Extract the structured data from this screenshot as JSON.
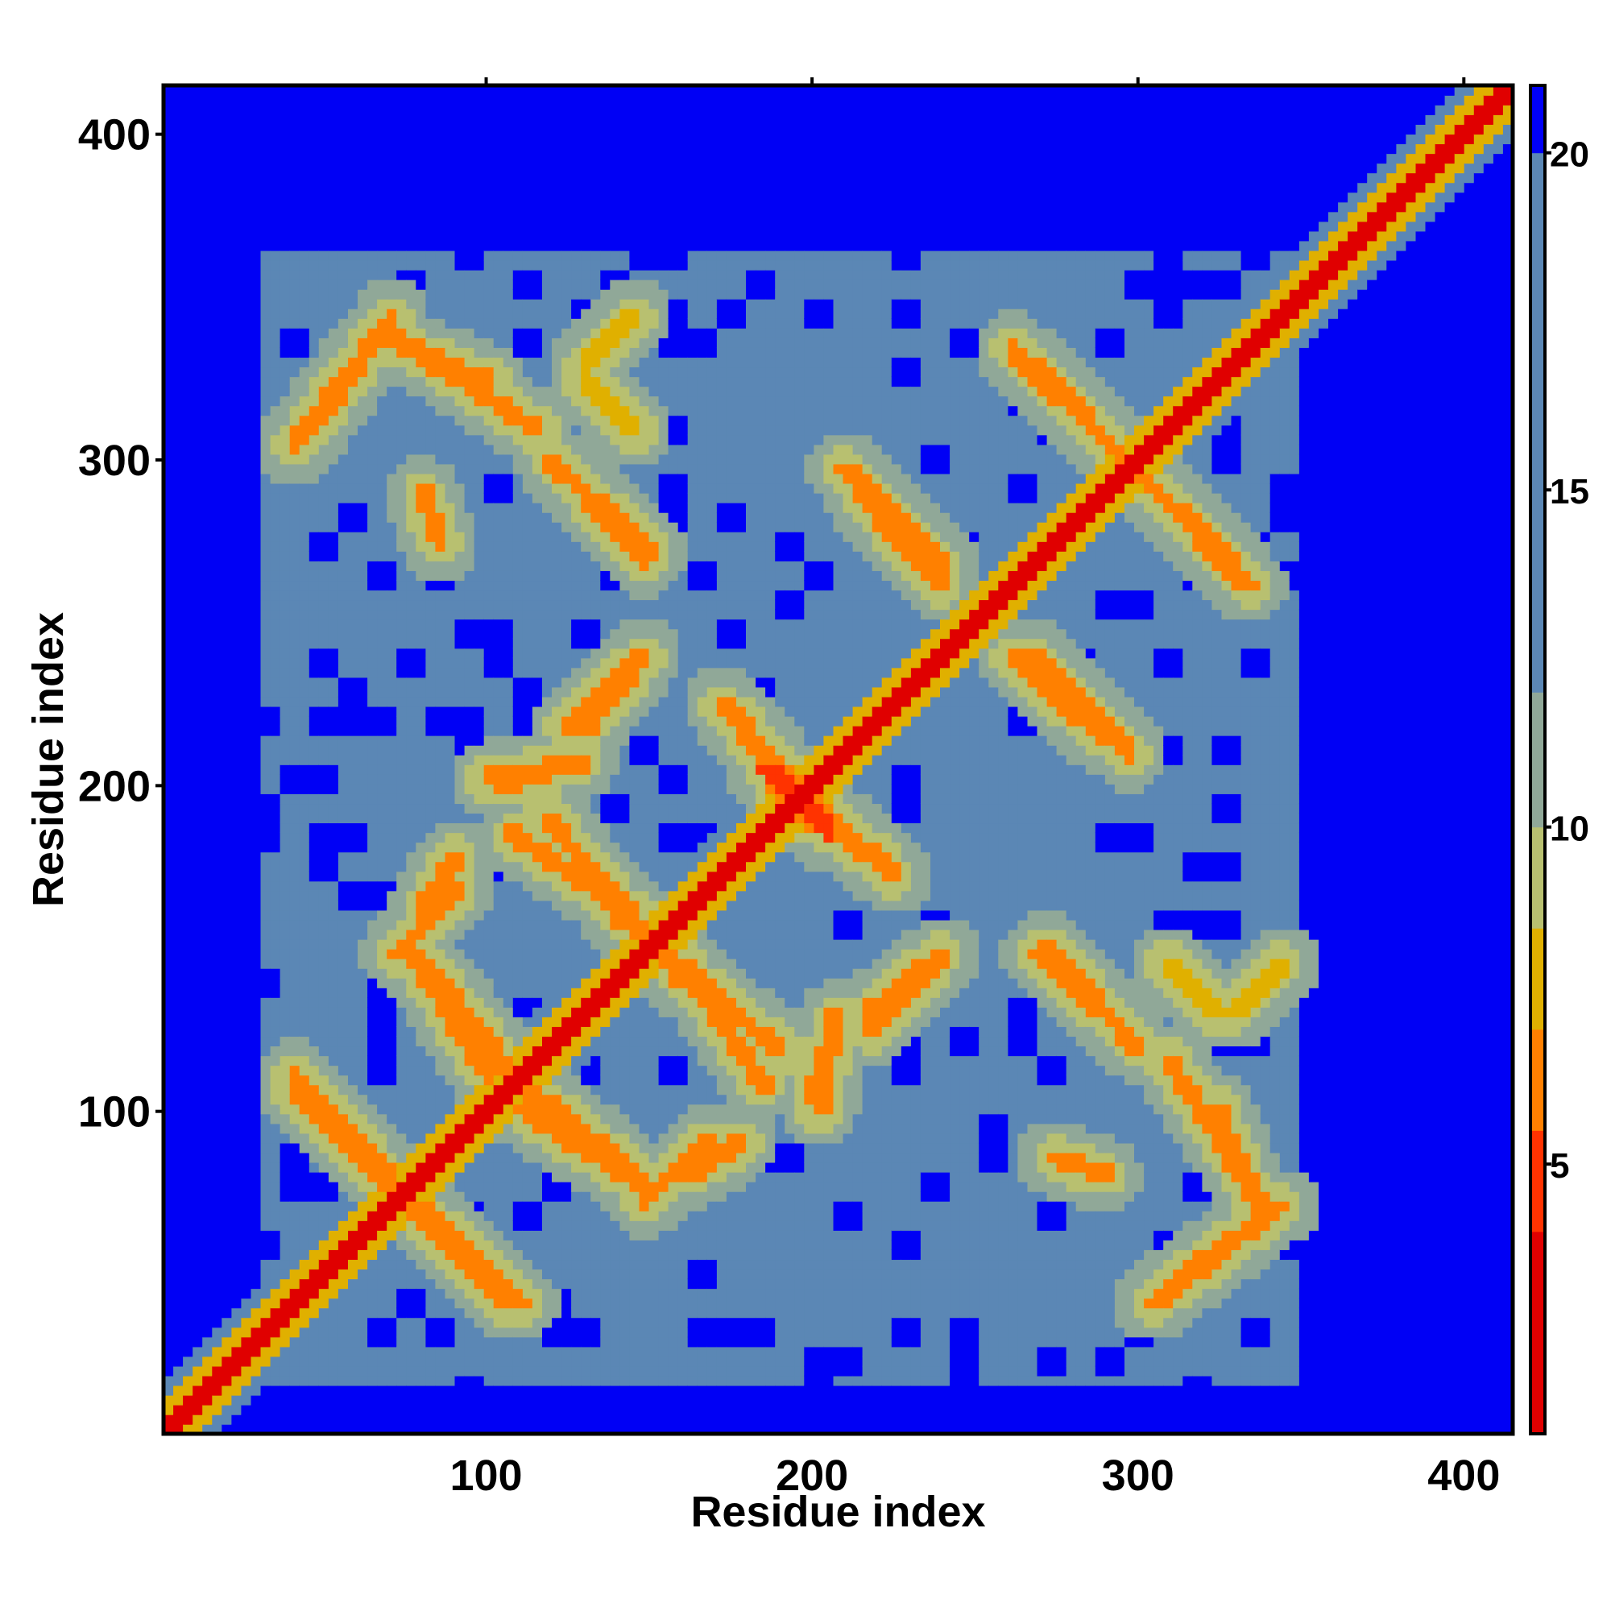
{
  "chart_data": {
    "type": "heatmap",
    "title": "",
    "xlabel": "Residue index",
    "ylabel": "Residue index",
    "xlim": [
      1,
      415
    ],
    "ylim": [
      1,
      415
    ],
    "x_ticks": [
      100,
      200,
      300,
      400
    ],
    "y_ticks": [
      100,
      200,
      300,
      400
    ],
    "x_tick_labels": [
      "100",
      "200",
      "300",
      "400"
    ],
    "y_tick_labels": [
      "100",
      "200",
      "300",
      "400"
    ],
    "grid": false,
    "colorbar": {
      "range": [
        1,
        21
      ],
      "ticks": [
        5,
        10,
        15,
        20
      ],
      "tick_labels": [
        "5",
        "10",
        "15",
        "20"
      ],
      "colors": [
        {
          "max": 4,
          "color": "#e00000"
        },
        {
          "max": 5.5,
          "color": "#ff3300"
        },
        {
          "max": 7,
          "color": "#ff8000"
        },
        {
          "max": 8.5,
          "color": "#e0b000"
        },
        {
          "max": 10,
          "color": "#b8c070"
        },
        {
          "max": 12,
          "color": "#90a898"
        },
        {
          "max": 20,
          "color": "#5b87b5"
        },
        {
          "max": 21,
          "color": "#0000f5"
        }
      ]
    },
    "matrix_description": "symmetric residue distance matrix",
    "diagonal": {
      "from": 1,
      "to": 415,
      "value": 3
    },
    "contact_bands": [
      {
        "x1": 40,
        "y1": 105,
        "x2": 110,
        "y2": 40,
        "value": 6
      },
      {
        "x1": 110,
        "y1": 100,
        "x2": 150,
        "y2": 75,
        "value": 6
      },
      {
        "x1": 148,
        "y1": 72,
        "x2": 168,
        "y2": 90,
        "value": 7
      },
      {
        "x1": 80,
        "y1": 145,
        "x2": 112,
        "y2": 105,
        "value": 6
      },
      {
        "x1": 80,
        "y1": 162,
        "x2": 90,
        "y2": 178,
        "value": 7
      },
      {
        "x1": 108,
        "y1": 185,
        "x2": 145,
        "y2": 160,
        "value": 6
      },
      {
        "x1": 100,
        "y1": 202,
        "x2": 128,
        "y2": 207,
        "value": 7
      },
      {
        "x1": 140,
        "y1": 160,
        "x2": 190,
        "y2": 118,
        "value": 6
      },
      {
        "x1": 124,
        "y1": 218,
        "x2": 148,
        "y2": 240,
        "value": 6
      },
      {
        "x1": 120,
        "y1": 300,
        "x2": 150,
        "y2": 272,
        "value": 7
      },
      {
        "x1": 58,
        "y1": 330,
        "x2": 40,
        "y2": 305,
        "value": 6
      },
      {
        "x1": 72,
        "y1": 338,
        "x2": 115,
        "y2": 310,
        "value": 6
      },
      {
        "x1": 80,
        "y1": 290,
        "x2": 85,
        "y2": 275,
        "value": 7
      },
      {
        "x1": 130,
        "y1": 325,
        "x2": 145,
        "y2": 310,
        "value": 8
      },
      {
        "x1": 172,
        "y1": 225,
        "x2": 205,
        "y2": 190,
        "value": 6
      },
      {
        "x1": 185,
        "y1": 205,
        "x2": 195,
        "y2": 198,
        "value": 5
      },
      {
        "x1": 198,
        "y1": 190,
        "x2": 220,
        "y2": 178,
        "value": 6
      },
      {
        "x1": 210,
        "y1": 298,
        "x2": 240,
        "y2": 268,
        "value": 6
      },
      {
        "x1": 200,
        "y1": 105,
        "x2": 205,
        "y2": 118,
        "value": 7
      },
      {
        "x1": 218,
        "y1": 130,
        "x2": 240,
        "y2": 148,
        "value": 6
      },
      {
        "x1": 262,
        "y1": 240,
        "x2": 290,
        "y2": 215,
        "value": 6
      },
      {
        "x1": 268,
        "y1": 330,
        "x2": 335,
        "y2": 262,
        "value": 6
      },
      {
        "x1": 270,
        "y1": 148,
        "x2": 290,
        "y2": 130,
        "value": 7
      },
      {
        "x1": 325,
        "y1": 100,
        "x2": 335,
        "y2": 75,
        "value": 7
      },
      {
        "x1": 310,
        "y1": 45,
        "x2": 345,
        "y2": 70,
        "value": 6
      },
      {
        "x1": 330,
        "y1": 130,
        "x2": 345,
        "y2": 145,
        "value": 8
      }
    ],
    "core_region": {
      "x_range": [
        30,
        350
      ],
      "y_range": [
        15,
        365
      ],
      "value": 16
    }
  }
}
